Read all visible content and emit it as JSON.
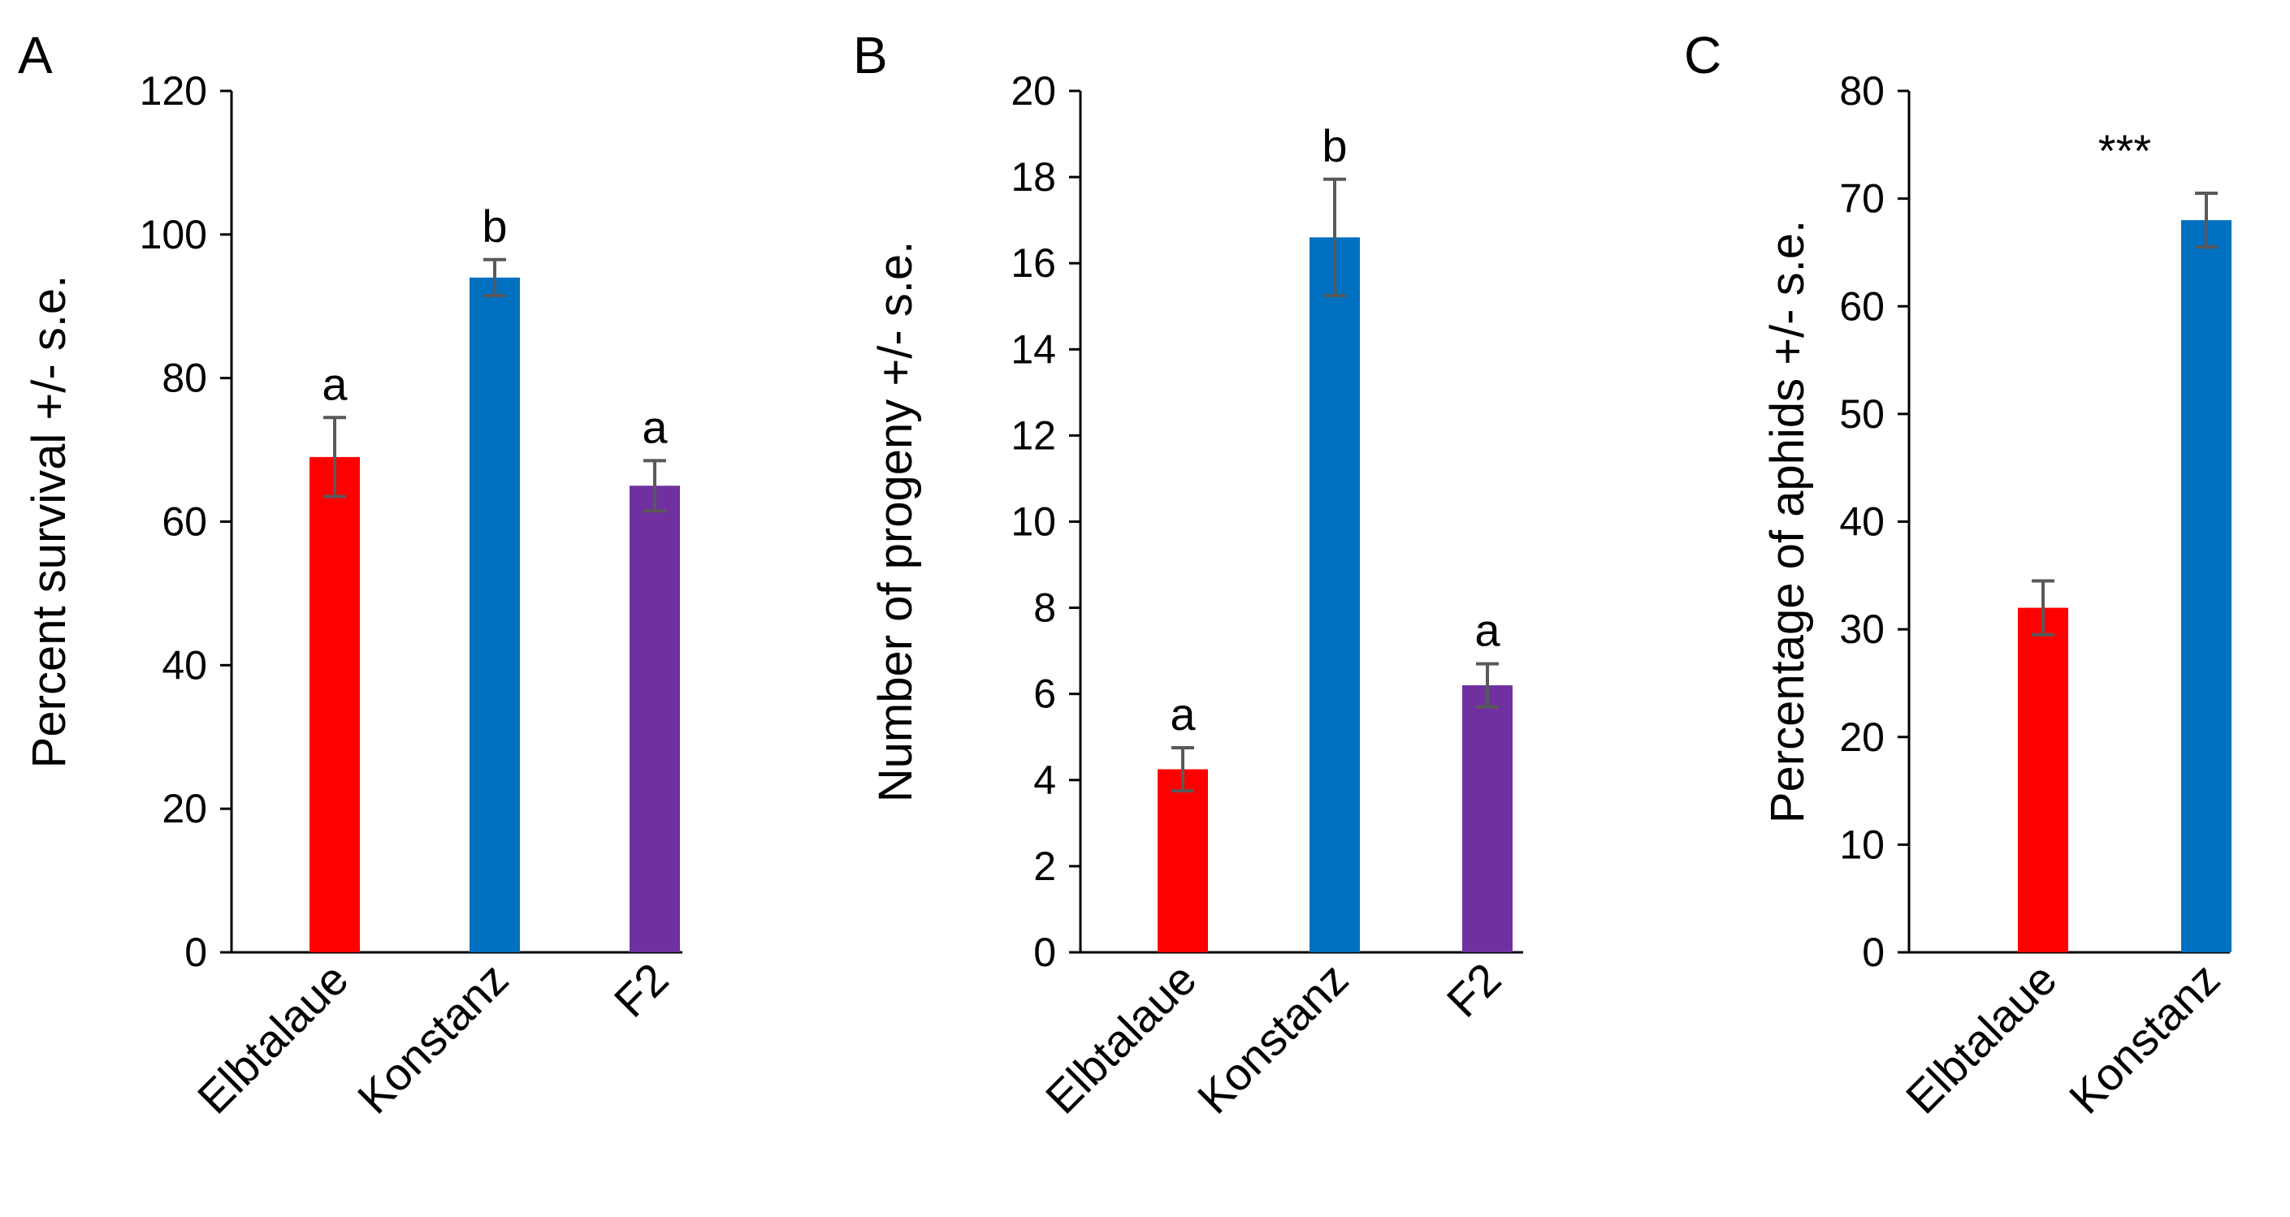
{
  "chart_data": [
    {
      "type": "bar",
      "panel": "A",
      "ylabel": "Percent survival +/- s.e.",
      "ylim": [
        0,
        120
      ],
      "yticks": [
        0,
        20,
        40,
        60,
        80,
        100,
        120
      ],
      "categories": [
        "Elbtalaue",
        "Konstanz",
        "F2"
      ],
      "values": [
        69,
        94,
        65
      ],
      "errors": [
        5.5,
        2.5,
        3.5
      ],
      "significance": [
        "a",
        "b",
        "a"
      ],
      "colors": [
        "#ff0000",
        "#0070c0",
        "#7030a0"
      ]
    },
    {
      "type": "bar",
      "panel": "B",
      "ylabel": "Number of progeny +/- s.e.",
      "ylim": [
        0,
        20
      ],
      "yticks": [
        0,
        2,
        4,
        6,
        8,
        10,
        12,
        14,
        16,
        18,
        20
      ],
      "categories": [
        "Elbtalaue",
        "Konstanz",
        "F2"
      ],
      "values": [
        4.25,
        16.6,
        6.2
      ],
      "errors": [
        0.5,
        1.35,
        0.5
      ],
      "significance": [
        "a",
        "b",
        "a"
      ],
      "colors": [
        "#ff0000",
        "#0070c0",
        "#7030a0"
      ]
    },
    {
      "type": "bar",
      "panel": "C",
      "ylabel": "Percentage of aphids +/- s.e.",
      "ylim": [
        0,
        80
      ],
      "yticks": [
        0,
        10,
        20,
        30,
        40,
        50,
        60,
        70,
        80
      ],
      "categories": [
        "Elbtalaue",
        "Konstanz"
      ],
      "values": [
        32,
        68
      ],
      "errors": [
        2.5,
        2.5
      ],
      "significance_star": "***",
      "colors": [
        "#ff0000",
        "#0070c0"
      ]
    }
  ]
}
